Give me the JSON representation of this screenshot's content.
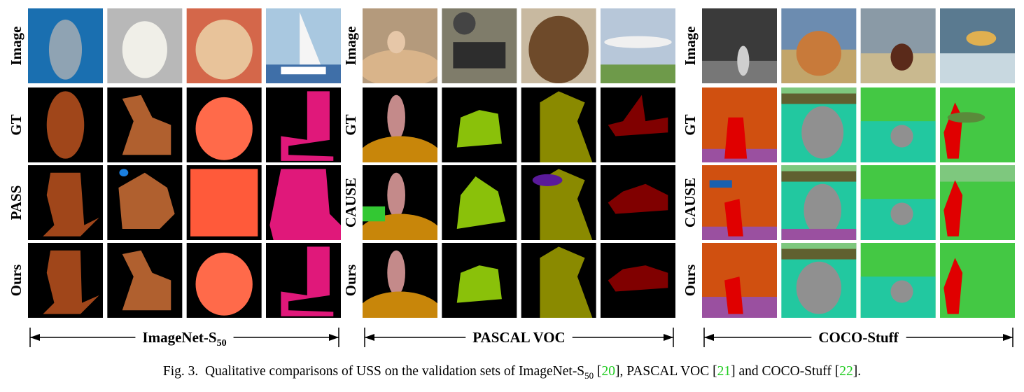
{
  "panels": [
    {
      "name": "ImageNet-S",
      "name_sub": "50",
      "rows": [
        "Image",
        "GT",
        "PASS",
        "Ours"
      ]
    },
    {
      "name": "PASCAL VOC",
      "rows": [
        "Image",
        "GT",
        "CAUSE",
        "Ours"
      ]
    },
    {
      "name": "COCO-Stuff",
      "rows": [
        "Image",
        "GT",
        "CAUSE",
        "Ours"
      ]
    }
  ],
  "caption": {
    "label": "Fig. 3.",
    "text1": "Qualitative comparisons of USS on the validation sets of ImageNet-S",
    "sub": "50",
    "ref1": "20",
    "text2": "PASCAL VOC",
    "ref2": "21",
    "text3": "and COCO-Stuff",
    "ref3": "22"
  }
}
